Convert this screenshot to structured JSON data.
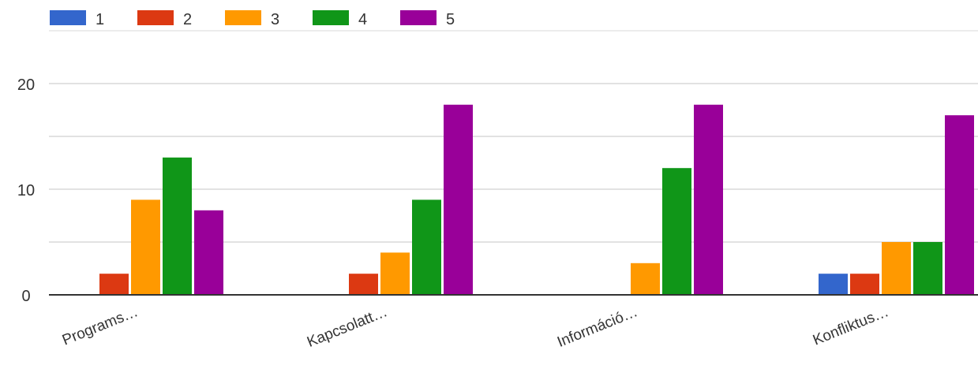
{
  "chart_data": {
    "type": "bar",
    "categories": [
      "Programs…",
      "Kapcsolatt…",
      "Információ…",
      "Konfliktus…"
    ],
    "series": [
      {
        "name": "1",
        "color": "#3366cc",
        "values": [
          0,
          0,
          0,
          2
        ]
      },
      {
        "name": "2",
        "color": "#dc3912",
        "values": [
          2,
          2,
          0,
          2
        ]
      },
      {
        "name": "3",
        "color": "#ff9900",
        "values": [
          9,
          4,
          3,
          5
        ]
      },
      {
        "name": "4",
        "color": "#109618",
        "values": [
          13,
          9,
          12,
          5
        ]
      },
      {
        "name": "5",
        "color": "#990099",
        "values": [
          8,
          18,
          18,
          17
        ]
      }
    ],
    "ylim": [
      0,
      20
    ],
    "yticks": [
      "0",
      "10",
      "20"
    ],
    "grid": true,
    "legend": "top-left",
    "xlabel": "",
    "ylabel": ""
  }
}
